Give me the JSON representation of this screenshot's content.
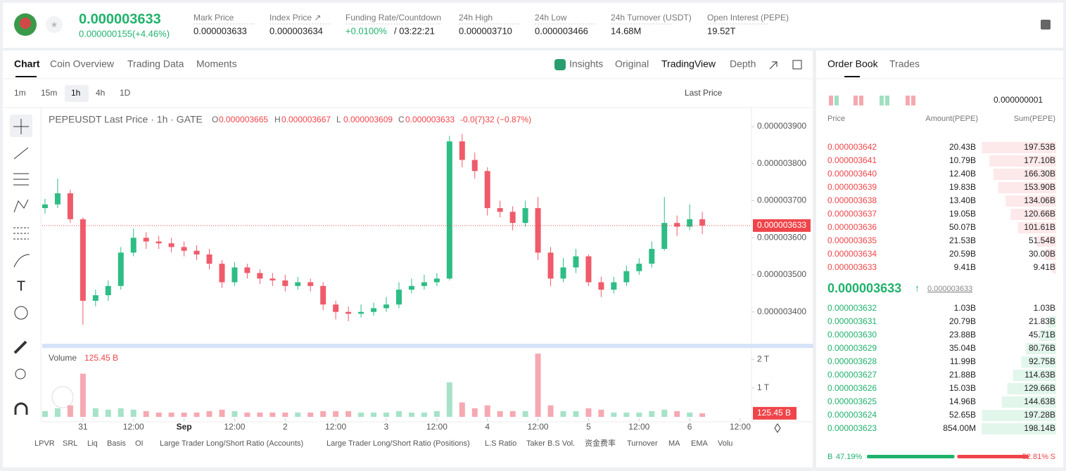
{
  "header": {
    "price": "0.000003633",
    "change": "0.000000155(+4.46%)",
    "stats": [
      {
        "label": "Mark Price",
        "value": "0.000003633"
      },
      {
        "label": "Index Price ↗",
        "value": "0.000003634"
      },
      {
        "label": "Funding Rate/Countdown",
        "value": "+0.0100%",
        "extra": "/ 03:22:21"
      },
      {
        "label": "24h High",
        "value": "0.000003710"
      },
      {
        "label": "24h Low",
        "value": "0.000003466"
      },
      {
        "label": "24h Turnover (USDT)",
        "value": "14.68M"
      },
      {
        "label": "Open Interest (PEPE)",
        "value": "19.52T"
      }
    ]
  },
  "tabs": [
    "Chart",
    "Coin Overview",
    "Trading Data",
    "Moments"
  ],
  "views": [
    "Insights",
    "Original",
    "TradingView",
    "Depth"
  ],
  "intervals": [
    "1m",
    "15m",
    "1h",
    "4h",
    "1D"
  ],
  "price_source": "Last Price",
  "legend": {
    "title": "PEPEUSDT Last Price · 1h · GATE",
    "ohlc": [
      {
        "key": "O",
        "value": "0.000003665"
      },
      {
        "key": "H",
        "value": "0.000003667"
      },
      {
        "key": "L",
        "value": "0.000003609"
      },
      {
        "key": "C",
        "value": "0.000003633"
      }
    ],
    "change": "-0.0{7}32 (−0.87%)"
  },
  "chart_data": {
    "type": "candlestick",
    "x": [
      0,
      3,
      6,
      9,
      12,
      15,
      18,
      21,
      24,
      27,
      30,
      33,
      36,
      39,
      42,
      45,
      48,
      51,
      54,
      57,
      60,
      63,
      66,
      69,
      72,
      75,
      78,
      81,
      84,
      87,
      90,
      93,
      96,
      99,
      102,
      105,
      108,
      111,
      114,
      117,
      120,
      123,
      126,
      129,
      132,
      135,
      138,
      141,
      144,
      147,
      150,
      153,
      156
    ],
    "open": [
      3.68e-06,
      3.69e-06,
      3.72e-06,
      3.65e-06,
      3.43e-06,
      3.445e-06,
      3.47e-06,
      3.56e-06,
      3.6e-06,
      3.59e-06,
      3.585e-06,
      3.575e-06,
      3.565e-06,
      3.555e-06,
      3.53e-06,
      3.48e-06,
      3.52e-06,
      3.505e-06,
      3.49e-06,
      3.485e-06,
      3.47e-06,
      3.48e-06,
      3.47e-06,
      3.42e-06,
      3.4e-06,
      3.395e-06,
      3.4e-06,
      3.41e-06,
      3.42e-06,
      3.46e-06,
      3.47e-06,
      3.48e-06,
      3.49e-06,
      3.86e-06,
      3.81e-06,
      3.78e-06,
      3.68e-06,
      3.67e-06,
      3.64e-06,
      3.68e-06,
      3.56e-06,
      3.49e-06,
      3.52e-06,
      3.55e-06,
      3.48e-06,
      3.46e-06,
      3.48e-06,
      3.51e-06,
      3.53e-06,
      3.57e-06,
      3.64e-06,
      3.63e-06,
      3.65e-06
    ],
    "high": [
      3.705e-06,
      3.76e-06,
      3.73e-06,
      3.655e-06,
      3.46e-06,
      3.485e-06,
      3.575e-06,
      3.625e-06,
      3.615e-06,
      3.605e-06,
      3.6e-06,
      3.59e-06,
      3.58e-06,
      3.57e-06,
      3.54e-06,
      3.535e-06,
      3.53e-06,
      3.515e-06,
      3.505e-06,
      3.5e-06,
      3.495e-06,
      3.49e-06,
      3.48e-06,
      3.43e-06,
      3.415e-06,
      3.42e-06,
      3.425e-06,
      3.44e-06,
      3.48e-06,
      3.49e-06,
      3.5e-06,
      3.505e-06,
      3.875e-06,
      3.88e-06,
      3.83e-06,
      3.79e-06,
      3.7e-06,
      3.685e-06,
      3.7e-06,
      3.71e-06,
      3.575e-06,
      3.545e-06,
      3.57e-06,
      3.555e-06,
      3.495e-06,
      3.495e-06,
      3.525e-06,
      3.545e-06,
      3.59e-06,
      3.71e-06,
      3.66e-06,
      3.69e-06,
      3.67e-06
    ],
    "low": [
      3.665e-06,
      3.68e-06,
      3.64e-06,
      3.365e-06,
      3.415e-06,
      3.43e-06,
      3.46e-06,
      3.55e-06,
      3.57e-06,
      3.57e-06,
      3.56e-06,
      3.55e-06,
      3.54e-06,
      3.515e-06,
      3.465e-06,
      3.47e-06,
      3.49e-06,
      3.475e-06,
      3.47e-06,
      3.455e-06,
      3.46e-06,
      3.455e-06,
      3.405e-06,
      3.38e-06,
      3.375e-06,
      3.385e-06,
      3.39e-06,
      3.4e-06,
      3.41e-06,
      3.45e-06,
      3.46e-06,
      3.47e-06,
      3.485e-06,
      3.79e-06,
      3.76e-06,
      3.66e-06,
      3.655e-06,
      3.62e-06,
      3.63e-06,
      3.54e-06,
      3.47e-06,
      3.48e-06,
      3.505e-06,
      3.47e-06,
      3.44e-06,
      3.45e-06,
      3.47e-06,
      3.5e-06,
      3.52e-06,
      3.565e-06,
      3.605e-06,
      3.62e-06,
      3.61e-06
    ],
    "close": [
      3.69e-06,
      3.72e-06,
      3.65e-06,
      3.43e-06,
      3.445e-06,
      3.47e-06,
      3.56e-06,
      3.6e-06,
      3.59e-06,
      3.585e-06,
      3.575e-06,
      3.565e-06,
      3.555e-06,
      3.53e-06,
      3.48e-06,
      3.52e-06,
      3.505e-06,
      3.49e-06,
      3.485e-06,
      3.47e-06,
      3.48e-06,
      3.47e-06,
      3.42e-06,
      3.4e-06,
      3.395e-06,
      3.4e-06,
      3.41e-06,
      3.42e-06,
      3.46e-06,
      3.47e-06,
      3.48e-06,
      3.49e-06,
      3.86e-06,
      3.81e-06,
      3.78e-06,
      3.68e-06,
      3.67e-06,
      3.64e-06,
      3.68e-06,
      3.56e-06,
      3.49e-06,
      3.52e-06,
      3.55e-06,
      3.48e-06,
      3.46e-06,
      3.48e-06,
      3.51e-06,
      3.53e-06,
      3.57e-06,
      3.64e-06,
      3.63e-06,
      3.65e-06,
      3.633e-06
    ],
    "up_color": "#2ebd85",
    "down_color": "#ef5b6a",
    "xlim": [
      -0.33,
      166
    ],
    "xticks": [
      {
        "value": 9,
        "label": "31"
      },
      {
        "value": 21,
        "label": "12:00"
      },
      {
        "value": 33,
        "label": "Sep"
      },
      {
        "value": 45,
        "label": "12:00"
      },
      {
        "value": 57,
        "label": "2"
      },
      {
        "value": 69,
        "label": "12:00"
      },
      {
        "value": 81,
        "label": "3"
      },
      {
        "value": 93,
        "label": "12:00"
      },
      {
        "value": 105,
        "label": "4"
      },
      {
        "value": 117,
        "label": "12:00"
      },
      {
        "value": 129,
        "label": "5"
      },
      {
        "value": 141,
        "label": "12:00"
      },
      {
        "value": 153,
        "label": "6"
      },
      {
        "value": 165,
        "label": "12:00"
      }
    ],
    "ylim": [
      3.316e-06,
      3.938e-06
    ],
    "yticks": [
      {
        "value": 3.9e-06,
        "label": "0.000003900"
      },
      {
        "value": 3.8e-06,
        "label": "0.000003800"
      },
      {
        "value": 3.7e-06,
        "label": "0.000003700"
      },
      {
        "value": 3.6e-06,
        "label": "0.000003600"
      },
      {
        "value": 3.5e-06,
        "label": "0.000003500"
      },
      {
        "value": 3.4e-06,
        "label": "0.000003400"
      }
    ],
    "last_price": {
      "value": 3.633e-06,
      "label": "0.000003633"
    },
    "volume": {
      "title": "Volume",
      "values": [
        200,
        300,
        400,
        1500,
        300,
        250,
        300,
        250,
        200,
        150,
        150,
        150,
        150,
        200,
        250,
        200,
        150,
        150,
        150,
        150,
        150,
        150,
        200,
        200,
        200,
        150,
        150,
        150,
        200,
        150,
        150,
        200,
        1200,
        500,
        300,
        400,
        200,
        200,
        200,
        2200,
        400,
        200,
        200,
        300,
        250,
        150,
        150,
        150,
        200,
        250,
        200,
        150,
        125.45
      ],
      "up_color": "#a6e3c8",
      "down_color": "#f5a9b2",
      "ylim": [
        0,
        2150
      ],
      "yticks": [
        {
          "value": 2000,
          "label": "2 T"
        },
        {
          "value": 1000,
          "label": "1 T"
        }
      ],
      "last": {
        "value": 125.45,
        "label": "125.45 B"
      }
    }
  },
  "indicators": [
    "LPVR",
    "SRL",
    "Liq",
    "Basis",
    "OI",
    "Large Trader Long/Short Ratio (Accounts)",
    "Large Trader Long/Short Ratio (Positions)",
    "L.S Ratio",
    "Taker B.S Vol.",
    "资金费率",
    "Turnover",
    "MA",
    "EMA",
    "Volu"
  ],
  "order_book": {
    "tabs": [
      "Order Book",
      "Trades"
    ],
    "precision": "0.000000001",
    "columns": [
      "Price",
      "Amount(PEPE)",
      "Sum(PEPE)"
    ],
    "asks": [
      {
        "price": "0.000003642",
        "amount": "20.43B",
        "sum": {
          "value": 197.53,
          "label": "197.53B"
        }
      },
      {
        "price": "0.000003641",
        "amount": "10.79B",
        "sum": {
          "value": 177.1,
          "label": "177.10B"
        }
      },
      {
        "price": "0.000003640",
        "amount": "12.40B",
        "sum": {
          "value": 166.3,
          "label": "166.30B"
        }
      },
      {
        "price": "0.000003639",
        "amount": "19.83B",
        "sum": {
          "value": 153.9,
          "label": "153.90B"
        }
      },
      {
        "price": "0.000003638",
        "amount": "13.40B",
        "sum": {
          "value": 134.06,
          "label": "134.06B"
        }
      },
      {
        "price": "0.000003637",
        "amount": "19.05B",
        "sum": {
          "value": 120.66,
          "label": "120.66B"
        }
      },
      {
        "price": "0.000003636",
        "amount": "50.07B",
        "sum": {
          "value": 101.61,
          "label": "101.61B"
        }
      },
      {
        "price": "0.000003635",
        "amount": "21.53B",
        "sum": {
          "value": 51.54,
          "label": "51.54B"
        }
      },
      {
        "price": "0.000003634",
        "amount": "20.59B",
        "sum": {
          "value": 30.0,
          "label": "30.00B"
        }
      },
      {
        "price": "0.000003633",
        "amount": "9.41B",
        "sum": {
          "value": 9.41,
          "label": "9.41B"
        }
      }
    ],
    "mid_price": "0.000003633",
    "mid_arrow": "↑",
    "mid_index": "0.000003633",
    "bids": [
      {
        "price": "0.000003632",
        "amount": "1.03B",
        "sum": {
          "value": 1.03,
          "label": "1.03B"
        }
      },
      {
        "price": "0.000003631",
        "amount": "20.79B",
        "sum": {
          "value": 21.83,
          "label": "21.83B"
        }
      },
      {
        "price": "0.000003630",
        "amount": "23.88B",
        "sum": {
          "value": 45.71,
          "label": "45.71B"
        }
      },
      {
        "price": "0.000003629",
        "amount": "35.04B",
        "sum": {
          "value": 80.76,
          "label": "80.76B"
        }
      },
      {
        "price": "0.000003628",
        "amount": "11.99B",
        "sum": {
          "value": 92.75,
          "label": "92.75B"
        }
      },
      {
        "price": "0.000003627",
        "amount": "21.88B",
        "sum": {
          "value": 114.63,
          "label": "114.63B"
        }
      },
      {
        "price": "0.000003626",
        "amount": "15.03B",
        "sum": {
          "value": 129.66,
          "label": "129.66B"
        }
      },
      {
        "price": "0.000003625",
        "amount": "14.96B",
        "sum": {
          "value": 144.63,
          "label": "144.63B"
        }
      },
      {
        "price": "0.000003624",
        "amount": "52.65B",
        "sum": {
          "value": 197.28,
          "label": "197.28B"
        }
      },
      {
        "price": "0.000003623",
        "amount": "854.00M",
        "sum": {
          "value": 198.14,
          "label": "198.14B"
        }
      }
    ],
    "ratio": {
      "buy_key": "B",
      "buy": {
        "value": 47.19,
        "label": "47.19%"
      },
      "sell": {
        "value": 52.81,
        "label": "52.81%"
      },
      "sell_key": "S"
    }
  }
}
